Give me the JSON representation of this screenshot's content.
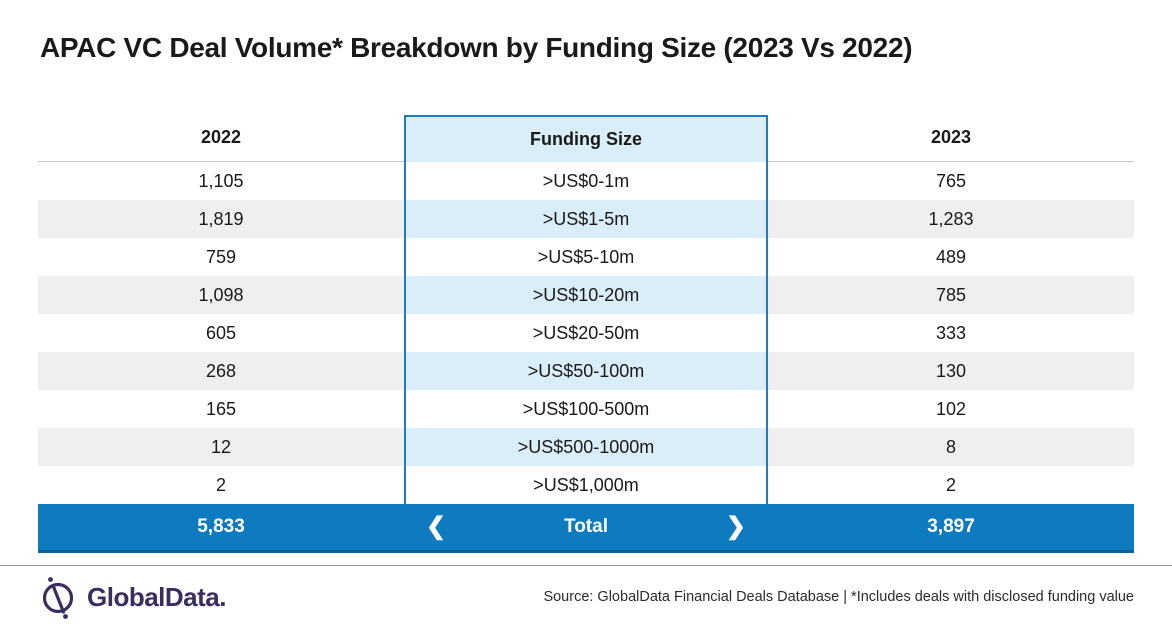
{
  "title": "APAC VC Deal Volume* Breakdown by Funding Size (2023 Vs 2022)",
  "table": {
    "col_2022_header": "2022",
    "col_funding_header": "Funding Size",
    "col_2023_header": "2023",
    "rows": [
      {
        "y2022": "1,105",
        "funding": ">US$0-1m",
        "y2023": "765"
      },
      {
        "y2022": "1,819",
        "funding": ">US$1-5m",
        "y2023": "1,283"
      },
      {
        "y2022": "759",
        "funding": ">US$5-10m",
        "y2023": "489"
      },
      {
        "y2022": "1,098",
        "funding": ">US$10-20m",
        "y2023": "785"
      },
      {
        "y2022": "605",
        "funding": ">US$20-50m",
        "y2023": "333"
      },
      {
        "y2022": "268",
        "funding": ">US$50-100m",
        "y2023": "130"
      },
      {
        "y2022": "165",
        "funding": ">US$100-500m",
        "y2023": "102"
      },
      {
        "y2022": "12",
        "funding": ">US$500-1000m",
        "y2023": "8"
      },
      {
        "y2022": "2",
        "funding": ">US$1,000m",
        "y2023": "2"
      }
    ],
    "total": {
      "y2022": "5,833",
      "label": "Total",
      "y2023": "3,897",
      "left_chevron": "❮",
      "right_chevron": "❯"
    }
  },
  "footer": {
    "logo_text": "GlobalData.",
    "source": "Source: GlobalData Financial Deals Database | *Includes deals with disclosed funding value"
  },
  "colors": {
    "total_bar_blue": "#0e7bc0",
    "total_bar_bottom_border": "#0a639c",
    "column_border_blue": "#1e7dc0",
    "light_blue_fill": "#daeef9",
    "light_gray_fill": "#efefef",
    "header_underline_gray": "#c6c6c6",
    "logo_purple": "#3b2d61",
    "text_dark": "#1a1a1a"
  },
  "chart_data": {
    "type": "table",
    "title": "APAC VC Deal Volume* Breakdown by Funding Size (2023 Vs 2022)",
    "columns": [
      "2022",
      "Funding Size",
      "2023"
    ],
    "categories": [
      ">US$0-1m",
      ">US$1-5m",
      ">US$5-10m",
      ">US$10-20m",
      ">US$20-50m",
      ">US$50-100m",
      ">US$100-500m",
      ">US$500-1000m",
      ">US$1,000m"
    ],
    "series": [
      {
        "name": "2022",
        "values": [
          1105,
          1819,
          759,
          1098,
          605,
          268,
          165,
          12,
          2
        ],
        "total": 5833
      },
      {
        "name": "2023",
        "values": [
          765,
          1283,
          489,
          785,
          333,
          130,
          102,
          8,
          2
        ],
        "total": 3897
      }
    ],
    "source_note": "Source: GlobalData Financial Deals Database | *Includes deals with disclosed funding value"
  }
}
